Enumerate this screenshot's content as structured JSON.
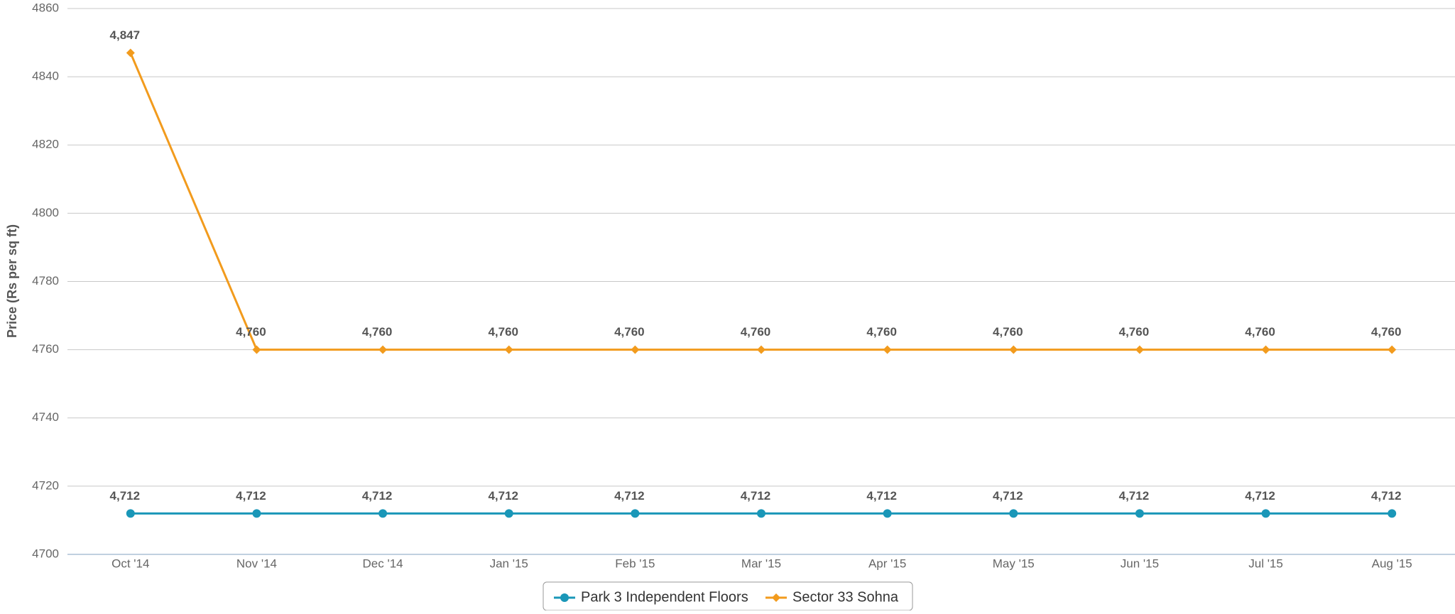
{
  "chart_data": {
    "type": "line",
    "y_label": "Price (Rs per sq ft)",
    "categories": [
      "Oct '14",
      "Nov '14",
      "Dec '14",
      "Jan '15",
      "Feb '15",
      "Mar '15",
      "Apr '15",
      "May '15",
      "Jun '15",
      "Jul '15",
      "Aug '15"
    ],
    "series": [
      {
        "name": "Park 3 Independent Floors",
        "color": "#1a97b8",
        "marker": "circle",
        "values": [
          4712,
          4712,
          4712,
          4712,
          4712,
          4712,
          4712,
          4712,
          4712,
          4712,
          4712
        ],
        "value_labels": [
          "4,712",
          "4,712",
          "4,712",
          "4,712",
          "4,712",
          "4,712",
          "4,712",
          "4,712",
          "4,712",
          "4,712",
          "4,712"
        ]
      },
      {
        "name": "Sector 33 Sohna",
        "color": "#f29b1d",
        "marker": "diamond",
        "values": [
          4847,
          4760,
          4760,
          4760,
          4760,
          4760,
          4760,
          4760,
          4760,
          4760,
          4760
        ],
        "value_labels": [
          "4,847",
          "4,760",
          "4,760",
          "4,760",
          "4,760",
          "4,760",
          "4,760",
          "4,760",
          "4,760",
          "4,760",
          "4,760"
        ]
      }
    ],
    "ylim": [
      4700,
      4860
    ],
    "yticks": [
      4700,
      4720,
      4740,
      4760,
      4780,
      4800,
      4820,
      4840,
      4860
    ],
    "grid": true,
    "legend": "bottom"
  }
}
